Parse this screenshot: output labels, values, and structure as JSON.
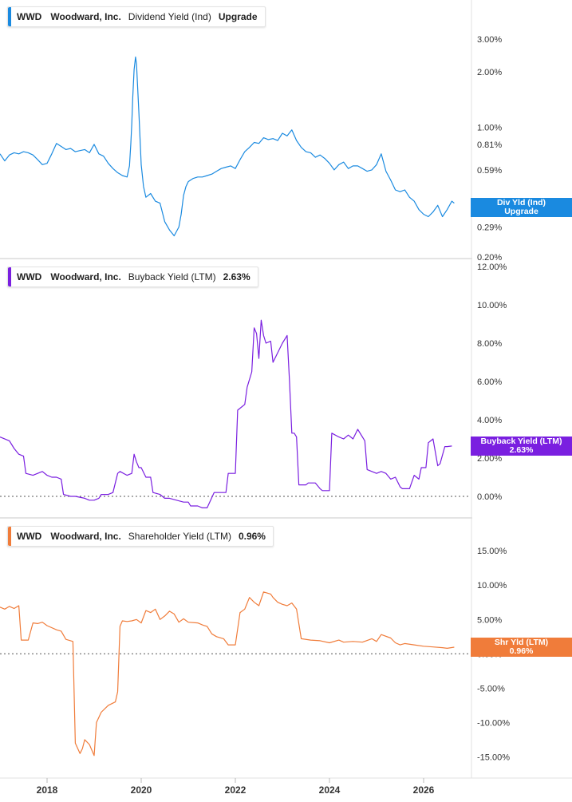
{
  "chart_data": [
    {
      "type": "line",
      "ticker": "WWD",
      "company": "Woodward, Inc.",
      "metric": "Dividend Yield (Ind)",
      "value_label": "Upgrade",
      "color": "#1a8ae0",
      "y_scale": "log",
      "ylim": [
        0.2,
        4.5
      ],
      "yticks": [
        0.2,
        0.29,
        0.37,
        0.59,
        0.81,
        1.0,
        2.0,
        3.0
      ],
      "ytick_labels": [
        "0.20%",
        "0.29%",
        "0.37%",
        "0.59%",
        "0.81%",
        "1.00%",
        "2.00%",
        "3.00%"
      ],
      "flag": {
        "line1": "Div Yld (Ind)",
        "line2": "Upgrade",
        "value": 0.37
      },
      "x": [
        2017.0,
        2017.1,
        2017.2,
        2017.3,
        2017.4,
        2017.5,
        2017.6,
        2017.7,
        2017.8,
        2017.9,
        2018.0,
        2018.1,
        2018.2,
        2018.3,
        2018.4,
        2018.5,
        2018.6,
        2018.7,
        2018.8,
        2018.9,
        2019.0,
        2019.1,
        2019.2,
        2019.3,
        2019.4,
        2019.5,
        2019.6,
        2019.7,
        2019.75,
        2019.78,
        2019.8,
        2019.82,
        2019.85,
        2019.88,
        2019.9,
        2019.95,
        2020.0,
        2020.05,
        2020.1,
        2020.2,
        2020.3,
        2020.4,
        2020.5,
        2020.6,
        2020.7,
        2020.8,
        2020.85,
        2020.9,
        2020.95,
        2021.0,
        2021.05,
        2021.1,
        2021.2,
        2021.3,
        2021.4,
        2021.5,
        2021.6,
        2021.7,
        2021.8,
        2021.9,
        2022.0,
        2022.1,
        2022.2,
        2022.3,
        2022.4,
        2022.5,
        2022.6,
        2022.7,
        2022.8,
        2022.9,
        2023.0,
        2023.1,
        2023.2,
        2023.3,
        2023.4,
        2023.5,
        2023.6,
        2023.7,
        2023.8,
        2023.9,
        2024.0,
        2024.1,
        2024.2,
        2024.3,
        2024.4,
        2024.5,
        2024.6,
        2024.7,
        2024.8,
        2024.9,
        2025.0,
        2025.1,
        2025.2,
        2025.3,
        2025.4,
        2025.5,
        2025.6,
        2025.7,
        2025.8,
        2025.9,
        2026.0,
        2026.1,
        2026.2,
        2026.3,
        2026.4,
        2026.5,
        2026.6,
        2026.65
      ],
      "y": [
        0.72,
        0.66,
        0.71,
        0.73,
        0.72,
        0.74,
        0.73,
        0.71,
        0.67,
        0.63,
        0.64,
        0.72,
        0.82,
        0.79,
        0.76,
        0.77,
        0.74,
        0.75,
        0.76,
        0.73,
        0.81,
        0.72,
        0.7,
        0.64,
        0.6,
        0.57,
        0.55,
        0.54,
        0.62,
        0.82,
        1.05,
        1.45,
        2.05,
        2.4,
        2.2,
        1.2,
        0.63,
        0.48,
        0.42,
        0.44,
        0.4,
        0.39,
        0.31,
        0.28,
        0.26,
        0.29,
        0.34,
        0.43,
        0.48,
        0.51,
        0.52,
        0.53,
        0.54,
        0.54,
        0.55,
        0.56,
        0.58,
        0.6,
        0.61,
        0.62,
        0.6,
        0.67,
        0.74,
        0.78,
        0.83,
        0.82,
        0.88,
        0.86,
        0.87,
        0.85,
        0.93,
        0.9,
        0.97,
        0.85,
        0.78,
        0.74,
        0.73,
        0.69,
        0.71,
        0.68,
        0.64,
        0.59,
        0.63,
        0.65,
        0.6,
        0.62,
        0.62,
        0.6,
        0.58,
        0.59,
        0.63,
        0.72,
        0.58,
        0.52,
        0.46,
        0.45,
        0.46,
        0.42,
        0.4,
        0.36,
        0.34,
        0.33,
        0.35,
        0.38,
        0.33,
        0.36,
        0.4,
        0.39
      ]
    },
    {
      "type": "line",
      "ticker": "WWD",
      "company": "Woodward, Inc.",
      "metric": "Buyback Yield (LTM)",
      "value_label": "2.63%",
      "color": "#7a1fe0",
      "y_scale": "linear",
      "ylim": [
        -1.0,
        12.0
      ],
      "yticks": [
        0,
        2,
        4,
        6,
        8,
        10,
        12
      ],
      "ytick_labels": [
        "0.00%",
        "2.00%",
        "4.00%",
        "6.00%",
        "8.00%",
        "10.00%",
        "12.00%"
      ],
      "zero_line": true,
      "flag": {
        "line1": "Buyback Yield (LTM)",
        "line2": "2.63%",
        "value": 2.63
      },
      "x": [
        2017.0,
        2017.2,
        2017.3,
        2017.4,
        2017.5,
        2017.55,
        2017.7,
        2017.8,
        2017.9,
        2018.0,
        2018.1,
        2018.2,
        2018.3,
        2018.35,
        2018.5,
        2018.6,
        2018.8,
        2018.9,
        2019.0,
        2019.1,
        2019.15,
        2019.3,
        2019.4,
        2019.5,
        2019.55,
        2019.7,
        2019.8,
        2019.85,
        2019.9,
        2019.95,
        2020.0,
        2020.1,
        2020.2,
        2020.25,
        2020.4,
        2020.5,
        2020.6,
        2020.75,
        2020.9,
        2021.0,
        2021.05,
        2021.2,
        2021.3,
        2021.4,
        2021.55,
        2021.7,
        2021.8,
        2021.85,
        2022.0,
        2022.05,
        2022.2,
        2022.25,
        2022.35,
        2022.4,
        2022.45,
        2022.5,
        2022.55,
        2022.6,
        2022.65,
        2022.75,
        2022.8,
        2022.9,
        2023.0,
        2023.1,
        2023.15,
        2023.2,
        2023.25,
        2023.3,
        2023.35,
        2023.5,
        2023.55,
        2023.7,
        2023.8,
        2023.85,
        2024.0,
        2024.05,
        2024.2,
        2024.3,
        2024.4,
        2024.5,
        2024.6,
        2024.75,
        2024.8,
        2025.0,
        2025.1,
        2025.2,
        2025.3,
        2025.4,
        2025.5,
        2025.55,
        2025.7,
        2025.8,
        2025.9,
        2025.95,
        2026.05,
        2026.1,
        2026.2,
        2026.3,
        2026.35,
        2026.45,
        2026.5,
        2026.6
      ],
      "y": [
        3.1,
        2.9,
        2.5,
        2.2,
        2.1,
        1.2,
        1.1,
        1.2,
        1.3,
        1.1,
        1.0,
        1.0,
        0.9,
        0.1,
        0.0,
        0.0,
        -0.1,
        -0.2,
        -0.2,
        -0.1,
        0.1,
        0.1,
        0.2,
        1.2,
        1.3,
        1.1,
        1.2,
        2.2,
        1.8,
        1.5,
        1.5,
        1.0,
        1.0,
        0.2,
        0.1,
        -0.1,
        -0.1,
        -0.2,
        -0.3,
        -0.3,
        -0.5,
        -0.5,
        -0.6,
        -0.6,
        0.2,
        0.2,
        0.2,
        1.2,
        1.2,
        4.5,
        4.8,
        5.7,
        6.5,
        8.8,
        8.5,
        7.2,
        9.2,
        8.4,
        8.0,
        8.1,
        7.0,
        7.5,
        8.0,
        8.4,
        6.0,
        3.3,
        3.3,
        3.1,
        0.6,
        0.6,
        0.7,
        0.7,
        0.4,
        0.3,
        0.3,
        3.3,
        3.1,
        3.0,
        3.2,
        3.0,
        3.5,
        2.9,
        1.4,
        1.2,
        1.3,
        1.2,
        0.9,
        1.0,
        0.5,
        0.4,
        0.4,
        1.1,
        0.9,
        1.5,
        1.5,
        2.8,
        3.0,
        1.6,
        1.7,
        2.6,
        2.6,
        2.63
      ]
    },
    {
      "type": "line",
      "ticker": "WWD",
      "company": "Woodward, Inc.",
      "metric": "Shareholder Yield (LTM)",
      "value_label": "0.96%",
      "color": "#f07c3a",
      "y_scale": "linear",
      "ylim": [
        -17.5,
        18.5
      ],
      "yticks": [
        -15,
        -10,
        -5,
        0,
        5,
        10,
        15
      ],
      "ytick_labels": [
        "-15.00%",
        "-10.00%",
        "-5.00%",
        "0.00%",
        "5.00%",
        "10.00%",
        "15.00%"
      ],
      "zero_line": true,
      "flag": {
        "line1": "Shr Yld (LTM)",
        "line2": "0.96%",
        "value": 0.96
      },
      "x": [
        2017.0,
        2017.1,
        2017.2,
        2017.3,
        2017.4,
        2017.45,
        2017.6,
        2017.7,
        2017.8,
        2017.9,
        2018.0,
        2018.2,
        2018.3,
        2018.4,
        2018.5,
        2018.55,
        2018.6,
        2018.7,
        2018.75,
        2018.8,
        2018.9,
        2019.0,
        2019.05,
        2019.15,
        2019.3,
        2019.45,
        2019.5,
        2019.55,
        2019.6,
        2019.7,
        2019.8,
        2019.9,
        2020.0,
        2020.1,
        2020.2,
        2020.3,
        2020.4,
        2020.5,
        2020.6,
        2020.7,
        2020.8,
        2020.9,
        2021.0,
        2021.2,
        2021.3,
        2021.4,
        2021.5,
        2021.6,
        2021.75,
        2021.85,
        2022.0,
        2022.1,
        2022.2,
        2022.3,
        2022.4,
        2022.5,
        2022.6,
        2022.75,
        2022.8,
        2022.9,
        2023.0,
        2023.1,
        2023.2,
        2023.3,
        2023.4,
        2023.6,
        2023.8,
        2024.0,
        2024.2,
        2024.3,
        2024.5,
        2024.7,
        2024.9,
        2025.0,
        2025.1,
        2025.3,
        2025.4,
        2025.5,
        2025.6,
        2025.8,
        2026.0,
        2026.2,
        2026.4,
        2026.5,
        2026.65
      ],
      "y": [
        6.8,
        6.5,
        6.9,
        6.6,
        7.0,
        2.0,
        2.0,
        4.5,
        4.4,
        4.6,
        4.1,
        3.5,
        3.3,
        2.1,
        1.9,
        1.8,
        -13.0,
        -14.5,
        -13.8,
        -12.5,
        -13.2,
        -14.8,
        -10.0,
        -8.5,
        -7.5,
        -7.0,
        -5.5,
        4.0,
        4.8,
        4.7,
        4.8,
        5.0,
        4.5,
        6.3,
        6.0,
        6.5,
        5.0,
        5.5,
        6.2,
        5.8,
        4.6,
        5.1,
        4.6,
        4.5,
        4.2,
        4.0,
        2.9,
        2.5,
        2.2,
        1.3,
        1.3,
        6.0,
        6.5,
        8.2,
        7.5,
        7.0,
        9.0,
        8.7,
        8.2,
        7.5,
        7.2,
        7.0,
        7.4,
        6.5,
        2.2,
        2.0,
        1.9,
        1.6,
        2.0,
        1.7,
        1.8,
        1.7,
        2.2,
        1.8,
        2.8,
        2.3,
        1.6,
        1.3,
        1.5,
        1.3,
        1.1,
        1.0,
        0.9,
        0.8,
        0.96
      ]
    }
  ],
  "x_axis": {
    "ticks": [
      2018,
      2020,
      2022,
      2024,
      2026
    ],
    "labels": [
      "2018",
      "2020",
      "2022",
      "2024",
      "2026"
    ],
    "xlim": [
      2017.0,
      2027.0
    ]
  }
}
